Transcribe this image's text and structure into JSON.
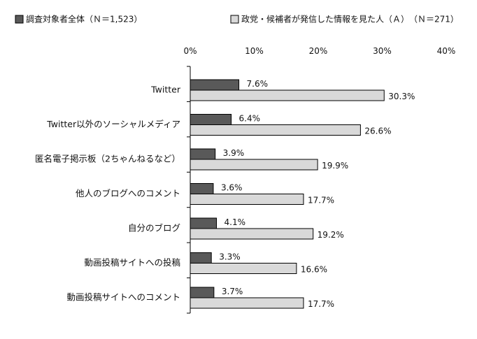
{
  "chart_data": {
    "type": "bar",
    "orientation": "horizontal",
    "title": "",
    "xlabel": "",
    "ylabel": "",
    "xlim": [
      0,
      40
    ],
    "x_ticks": [
      "0%",
      "10%",
      "20%",
      "30%",
      "40%"
    ],
    "grid": false,
    "legend_position": "top",
    "categories": [
      "Twitter",
      "Twitter以外のソーシャルメディア",
      "匿名電子掲示板（2ちゃんねるなど）",
      "他人のブログへのコメント",
      "自分のブログ",
      "動画投稿サイトへの投稿",
      "動画投稿サイトへのコメント"
    ],
    "series": [
      {
        "name": "調査対象者全体（Ｎ＝1,523）",
        "values": [
          7.6,
          6.4,
          3.9,
          3.6,
          4.1,
          3.3,
          3.7
        ],
        "labels": [
          "7.6%",
          "6.4%",
          "3.9%",
          "3.6%",
          "4.1%",
          "3.3%",
          "3.7%"
        ],
        "color": "#595959"
      },
      {
        "name": "政党・候補者が発信した情報を見た人（Ａ）　（Ｎ＝271）",
        "values": [
          30.3,
          26.6,
          19.9,
          17.7,
          19.2,
          16.6,
          17.7
        ],
        "labels": [
          "30.3%",
          "26.6%",
          "19.9%",
          "17.7%",
          "19.2%",
          "16.6%",
          "17.7%"
        ],
        "color": "#d9d9d9"
      }
    ]
  }
}
